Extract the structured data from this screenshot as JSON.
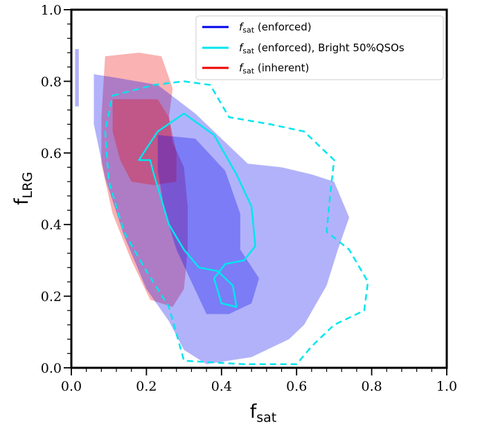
{
  "chart_data": {
    "type": "contour",
    "xlabel": {
      "main": "f",
      "sub": "sat"
    },
    "ylabel": {
      "main": "f",
      "sub": "LRG"
    },
    "xlim": [
      0.0,
      1.0
    ],
    "ylim": [
      0.0,
      1.0
    ],
    "xticks": [
      "0.0",
      "0.2",
      "0.4",
      "0.6",
      "0.8",
      "1.0"
    ],
    "yticks": [
      "0.0",
      "0.2",
      "0.4",
      "0.6",
      "0.8",
      "1.0"
    ],
    "grid": false,
    "legend_position": "top-right",
    "legend": [
      {
        "symbol": "f",
        "sub": "sat",
        "text": " (enforced)",
        "color": "#0000ee"
      },
      {
        "symbol": "f",
        "sub": "sat",
        "text": " (enforced), Bright 50%QSOs",
        "color": "#00e5ee"
      },
      {
        "symbol": "f",
        "sub": "sat",
        "text": " (inherent)",
        "color": "#ee0000"
      }
    ],
    "series": [
      {
        "id": "inherent",
        "color": "#ee0000",
        "outer": [
          [
            0.09,
            0.87
          ],
          [
            0.18,
            0.88
          ],
          [
            0.24,
            0.87
          ],
          [
            0.27,
            0.78
          ],
          [
            0.26,
            0.7
          ],
          [
            0.27,
            0.63
          ],
          [
            0.3,
            0.56
          ],
          [
            0.31,
            0.45
          ],
          [
            0.31,
            0.33
          ],
          [
            0.3,
            0.22
          ],
          [
            0.27,
            0.17
          ],
          [
            0.21,
            0.19
          ],
          [
            0.16,
            0.3
          ],
          [
            0.11,
            0.43
          ],
          [
            0.08,
            0.57
          ],
          [
            0.08,
            0.7
          ]
        ],
        "inner": [
          [
            0.11,
            0.75
          ],
          [
            0.23,
            0.75
          ],
          [
            0.26,
            0.7
          ],
          [
            0.28,
            0.6
          ],
          [
            0.28,
            0.52
          ],
          [
            0.22,
            0.51
          ],
          [
            0.16,
            0.52
          ],
          [
            0.13,
            0.58
          ],
          [
            0.11,
            0.66
          ]
        ]
      },
      {
        "id": "enforced",
        "color": "#0000ee",
        "outer": [
          [
            0.06,
            0.82
          ],
          [
            0.12,
            0.81
          ],
          [
            0.23,
            0.79
          ],
          [
            0.33,
            0.71
          ],
          [
            0.4,
            0.64
          ],
          [
            0.47,
            0.57
          ],
          [
            0.56,
            0.56
          ],
          [
            0.64,
            0.54
          ],
          [
            0.7,
            0.52
          ],
          [
            0.74,
            0.42
          ],
          [
            0.71,
            0.33
          ],
          [
            0.68,
            0.23
          ],
          [
            0.62,
            0.12
          ],
          [
            0.58,
            0.08
          ],
          [
            0.48,
            0.03
          ],
          [
            0.36,
            0.01
          ],
          [
            0.3,
            0.05
          ],
          [
            0.26,
            0.13
          ],
          [
            0.2,
            0.22
          ],
          [
            0.14,
            0.37
          ],
          [
            0.09,
            0.53
          ],
          [
            0.06,
            0.68
          ]
        ],
        "inner": [
          [
            0.23,
            0.65
          ],
          [
            0.33,
            0.64
          ],
          [
            0.41,
            0.55
          ],
          [
            0.45,
            0.43
          ],
          [
            0.45,
            0.33
          ],
          [
            0.5,
            0.25
          ],
          [
            0.48,
            0.18
          ],
          [
            0.42,
            0.15
          ],
          [
            0.36,
            0.15
          ],
          [
            0.32,
            0.24
          ],
          [
            0.28,
            0.33
          ],
          [
            0.25,
            0.43
          ],
          [
            0.23,
            0.55
          ]
        ],
        "stray": [
          [
            0.01,
            0.89
          ],
          [
            0.02,
            0.89
          ],
          [
            0.02,
            0.73
          ],
          [
            0.01,
            0.73
          ]
        ]
      },
      {
        "id": "bright",
        "color": "#00e5ee",
        "dashed": [
          [
            0.11,
            0.76
          ],
          [
            0.22,
            0.79
          ],
          [
            0.3,
            0.8
          ],
          [
            0.37,
            0.79
          ],
          [
            0.42,
            0.7
          ],
          [
            0.53,
            0.68
          ],
          [
            0.62,
            0.66
          ],
          [
            0.7,
            0.58
          ],
          [
            0.69,
            0.49
          ],
          [
            0.68,
            0.38
          ],
          [
            0.74,
            0.33
          ],
          [
            0.79,
            0.24
          ],
          [
            0.78,
            0.16
          ],
          [
            0.7,
            0.12
          ],
          [
            0.64,
            0.06
          ],
          [
            0.6,
            0.01
          ],
          [
            0.46,
            0.01
          ],
          [
            0.3,
            0.02
          ],
          [
            0.26,
            0.17
          ],
          [
            0.2,
            0.27
          ],
          [
            0.14,
            0.38
          ],
          [
            0.1,
            0.52
          ],
          [
            0.09,
            0.66
          ]
        ],
        "solid": [
          [
            0.18,
            0.58
          ],
          [
            0.23,
            0.66
          ],
          [
            0.3,
            0.71
          ],
          [
            0.38,
            0.65
          ],
          [
            0.44,
            0.54
          ],
          [
            0.48,
            0.45
          ],
          [
            0.49,
            0.34
          ],
          [
            0.46,
            0.3
          ],
          [
            0.41,
            0.29
          ],
          [
            0.38,
            0.25
          ],
          [
            0.4,
            0.18
          ],
          [
            0.44,
            0.17
          ],
          [
            0.43,
            0.23
          ],
          [
            0.39,
            0.27
          ],
          [
            0.34,
            0.28
          ],
          [
            0.3,
            0.33
          ],
          [
            0.26,
            0.4
          ],
          [
            0.24,
            0.47
          ],
          [
            0.22,
            0.54
          ],
          [
            0.21,
            0.58
          ]
        ]
      }
    ]
  }
}
